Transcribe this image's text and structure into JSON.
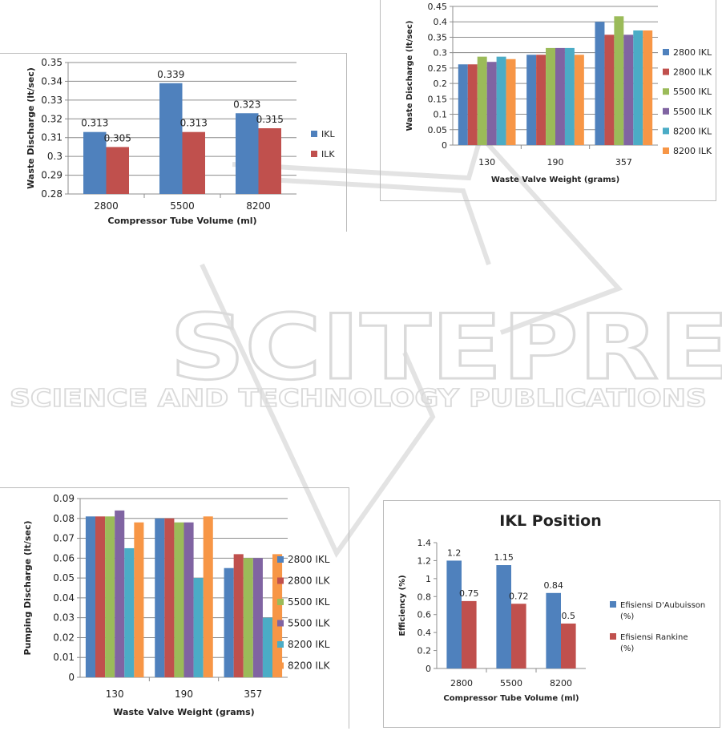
{
  "watermark": {
    "line1": "SCITEPRESS",
    "line2": "SCIENCE AND TECHNOLOGY PUBLICATIONS"
  },
  "chart_data": [
    {
      "type": "bar",
      "title": "",
      "xlabel": "Compressor Tube Volume (ml)",
      "ylabel": "Waste Discharge (lt/sec)",
      "categories": [
        "2800",
        "5500",
        "8200"
      ],
      "ylim": [
        0.28,
        0.35
      ],
      "yticks": [
        "0.28",
        "0.29",
        "0.3",
        "0.31",
        "0.32",
        "0.33",
        "0.34",
        "0.35"
      ],
      "grid": true,
      "legend": "right",
      "series": [
        {
          "name": "IKL",
          "color": "#4f81bd",
          "values": [
            0.313,
            0.339,
            0.323
          ],
          "labels": [
            "0.313",
            "0.339",
            "0.323"
          ]
        },
        {
          "name": "ILK",
          "color": "#c0504d",
          "values": [
            0.305,
            0.313,
            0.315
          ],
          "labels": [
            "0.305",
            "0.313",
            "0.315"
          ]
        }
      ]
    },
    {
      "type": "bar",
      "title": "",
      "xlabel": "Waste Valve Weight (grams)",
      "ylabel": "Waste Discharge (lt/sec)",
      "categories": [
        "130",
        "190",
        "357"
      ],
      "ylim": [
        0,
        0.45
      ],
      "yticks": [
        "0",
        "0.05",
        "0.1",
        "0.15",
        "0.2",
        "0.25",
        "0.3",
        "0.35",
        "0.4",
        "0.45"
      ],
      "grid": true,
      "legend": "right",
      "series": [
        {
          "name": "2800 IKL",
          "color": "#4f81bd",
          "values": [
            0.262,
            0.293,
            0.4
          ]
        },
        {
          "name": "2800 ILK",
          "color": "#c0504d",
          "values": [
            0.262,
            0.293,
            0.358
          ]
        },
        {
          "name": "5500 IKL",
          "color": "#9bbb59",
          "values": [
            0.287,
            0.315,
            0.418
          ]
        },
        {
          "name": "5500 ILK",
          "color": "#8064a2",
          "values": [
            0.27,
            0.315,
            0.358
          ]
        },
        {
          "name": "8200 IKL",
          "color": "#4bacc6",
          "values": [
            0.287,
            0.315,
            0.372
          ]
        },
        {
          "name": "8200 ILK",
          "color": "#f79646",
          "values": [
            0.279,
            0.293,
            0.372
          ]
        }
      ]
    },
    {
      "type": "bar",
      "title": "",
      "xlabel": "Waste Valve Weight (grams)",
      "ylabel": "Pumping Discharge (lt/sec)",
      "categories": [
        "130",
        "190",
        "357"
      ],
      "ylim": [
        0,
        0.09
      ],
      "yticks": [
        "0",
        "0.01",
        "0.02",
        "0.03",
        "0.04",
        "0.05",
        "0.06",
        "0.07",
        "0.08",
        "0.09"
      ],
      "grid": true,
      "legend": "right",
      "series": [
        {
          "name": "2800 IKL",
          "color": "#4f81bd",
          "values": [
            0.081,
            0.08,
            0.055
          ]
        },
        {
          "name": "2800 ILK",
          "color": "#c0504d",
          "values": [
            0.081,
            0.08,
            0.062
          ]
        },
        {
          "name": "5500 IKL",
          "color": "#9bbb59",
          "values": [
            0.081,
            0.078,
            0.06
          ]
        },
        {
          "name": "5500 ILK",
          "color": "#8064a2",
          "values": [
            0.084,
            0.078,
            0.06
          ]
        },
        {
          "name": "8200 IKL",
          "color": "#4bacc6",
          "values": [
            0.065,
            0.05,
            0.03
          ]
        },
        {
          "name": "8200 ILK",
          "color": "#f79646",
          "values": [
            0.078,
            0.081,
            0.062
          ]
        }
      ]
    },
    {
      "type": "bar",
      "title": "IKL Position",
      "xlabel": "Compressor Tube Volume (ml)",
      "ylabel": "Efficiency (%)",
      "categories": [
        "2800",
        "5500",
        "8200"
      ],
      "ylim": [
        0,
        1.4
      ],
      "yticks": [
        "0",
        "0.2",
        "0.4",
        "0.6",
        "0.8",
        "1",
        "1.2",
        "1.4"
      ],
      "grid": false,
      "legend": "right",
      "series": [
        {
          "name": "Efisiensi D'Aubuisson (%)",
          "color": "#4f81bd",
          "values": [
            1.2,
            1.15,
            0.84
          ],
          "labels": [
            "1.2",
            "1.15",
            "0.84"
          ]
        },
        {
          "name": "Efisiensi Rankine (%)",
          "color": "#c0504d",
          "values": [
            0.75,
            0.72,
            0.5
          ],
          "labels": [
            "0.75",
            "0.72",
            "0.5"
          ]
        }
      ]
    }
  ]
}
